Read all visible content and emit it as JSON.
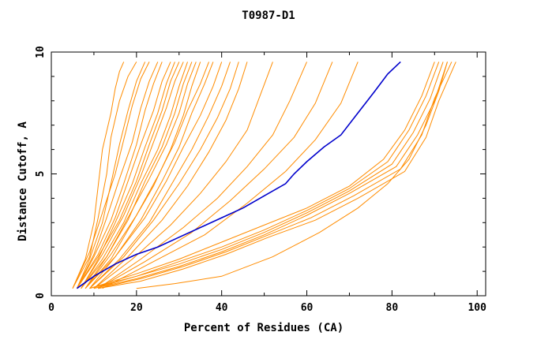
{
  "chart_data": {
    "type": "line",
    "title": "T0987-D1",
    "xlabel": "Percent of Residues (CA)",
    "ylabel": "Distance Cutoff, A",
    "xlim": [
      0,
      102
    ],
    "ylim": [
      0,
      10
    ],
    "xticks": [
      0,
      20,
      40,
      60,
      80,
      100
    ],
    "yticks": [
      0,
      5,
      10
    ],
    "grid": false,
    "colors": {
      "background": "#ffffff",
      "axis": "#000000",
      "others": "#ff8c00",
      "highlight": "#0000cc"
    },
    "highlight": {
      "x": [
        6,
        10,
        15,
        20,
        25,
        30,
        35,
        40,
        45,
        50,
        55,
        57,
        60,
        64,
        68,
        72,
        76,
        79,
        82
      ],
      "y": [
        0.3,
        0.8,
        1.3,
        1.7,
        2.0,
        2.4,
        2.8,
        3.2,
        3.6,
        4.1,
        4.6,
        5.0,
        5.5,
        6.1,
        6.6,
        7.5,
        8.4,
        9.1,
        9.6
      ]
    },
    "series": [
      {
        "x": [
          5,
          8,
          10,
          11,
          12,
          14,
          15,
          16,
          17
        ],
        "y": [
          0.3,
          1.5,
          3.0,
          4.5,
          6.0,
          7.5,
          8.5,
          9.2,
          9.6
        ]
      },
      {
        "x": [
          5,
          9,
          11,
          13,
          14,
          16,
          18,
          20
        ],
        "y": [
          0.3,
          1.6,
          3.2,
          5.0,
          6.5,
          8.0,
          9.0,
          9.6
        ]
      },
      {
        "x": [
          6,
          9,
          12,
          14,
          16,
          18,
          20,
          22
        ],
        "y": [
          0.3,
          1.5,
          3.0,
          4.6,
          6.2,
          7.6,
          8.8,
          9.6
        ]
      },
      {
        "x": [
          5,
          9,
          12,
          15,
          17,
          19,
          21,
          23
        ],
        "y": [
          0.3,
          1.8,
          3.4,
          5.0,
          6.4,
          7.8,
          8.9,
          9.6
        ]
      },
      {
        "x": [
          6,
          10,
          13,
          16,
          19,
          21,
          23,
          25
        ],
        "y": [
          0.3,
          1.7,
          3.2,
          4.8,
          6.3,
          7.7,
          8.8,
          9.6
        ]
      },
      {
        "x": [
          6,
          10,
          14,
          17,
          20,
          22,
          24,
          26
        ],
        "y": [
          0.3,
          1.6,
          3.1,
          4.6,
          6.2,
          7.6,
          8.7,
          9.6
        ]
      },
      {
        "x": [
          6,
          11,
          15,
          18,
          21,
          24,
          26,
          28
        ],
        "y": [
          0.3,
          1.7,
          3.2,
          4.7,
          6.2,
          7.6,
          8.8,
          9.6
        ]
      },
      {
        "x": [
          7,
          11,
          15,
          19,
          22,
          25,
          27,
          29
        ],
        "y": [
          0.3,
          1.5,
          3.0,
          4.6,
          6.1,
          7.5,
          8.7,
          9.6
        ]
      },
      {
        "x": [
          6,
          11,
          16,
          20,
          23,
          26,
          28,
          30
        ],
        "y": [
          0.3,
          1.6,
          3.1,
          4.7,
          6.2,
          7.6,
          8.8,
          9.6
        ]
      },
      {
        "x": [
          7,
          12,
          17,
          21,
          24,
          27,
          29,
          31
        ],
        "y": [
          0.3,
          1.7,
          3.3,
          4.9,
          6.3,
          7.7,
          8.8,
          9.6
        ]
      },
      {
        "x": [
          7,
          12,
          17,
          21,
          25,
          28,
          30,
          32
        ],
        "y": [
          0.3,
          1.5,
          3.0,
          4.6,
          6.0,
          7.4,
          8.6,
          9.6
        ]
      },
      {
        "x": [
          7,
          13,
          18,
          22,
          26,
          29,
          31,
          33
        ],
        "y": [
          0.3,
          1.6,
          3.1,
          4.7,
          6.1,
          7.5,
          8.7,
          9.6
        ]
      },
      {
        "x": [
          8,
          13,
          18,
          23,
          27,
          30,
          32,
          34
        ],
        "y": [
          0.3,
          1.6,
          3.2,
          4.8,
          6.2,
          7.5,
          8.7,
          9.6
        ]
      },
      {
        "x": [
          8,
          14,
          19,
          24,
          28,
          31,
          33,
          35
        ],
        "y": [
          0.3,
          1.5,
          3.0,
          4.5,
          6.0,
          7.4,
          8.6,
          9.6
        ]
      },
      {
        "x": [
          8,
          14,
          20,
          25,
          29,
          32,
          35,
          37
        ],
        "y": [
          0.3,
          1.7,
          3.3,
          4.9,
          6.3,
          7.6,
          8.7,
          9.6
        ]
      },
      {
        "x": [
          8,
          15,
          21,
          26,
          30,
          33,
          36,
          38
        ],
        "y": [
          0.3,
          1.6,
          3.1,
          4.7,
          6.1,
          7.5,
          8.7,
          9.6
        ]
      },
      {
        "x": [
          9,
          15,
          22,
          27,
          31,
          35,
          38,
          40
        ],
        "y": [
          0.3,
          1.6,
          3.2,
          4.7,
          6.1,
          7.4,
          8.6,
          9.6
        ]
      },
      {
        "x": [
          9,
          16,
          23,
          28,
          33,
          37,
          40,
          42
        ],
        "y": [
          0.3,
          1.5,
          3.0,
          4.5,
          6.0,
          7.4,
          8.6,
          9.6
        ]
      },
      {
        "x": [
          9,
          17,
          24,
          30,
          35,
          39,
          42,
          44
        ],
        "y": [
          0.3,
          1.6,
          3.1,
          4.6,
          6.0,
          7.3,
          8.5,
          9.6
        ]
      },
      {
        "x": [
          10,
          18,
          26,
          32,
          37,
          41,
          44,
          46
        ],
        "y": [
          0.3,
          1.6,
          3.1,
          4.5,
          5.9,
          7.2,
          8.5,
          9.6
        ]
      },
      {
        "x": [
          10,
          19,
          28,
          35,
          41,
          46,
          49,
          52
        ],
        "y": [
          0.3,
          1.5,
          2.9,
          4.2,
          5.5,
          6.8,
          8.2,
          9.6
        ]
      },
      {
        "x": [
          11,
          21,
          31,
          39,
          46,
          52,
          56,
          60
        ],
        "y": [
          0.3,
          1.5,
          2.8,
          4.0,
          5.3,
          6.6,
          8.0,
          9.6
        ]
      },
      {
        "x": [
          11,
          22,
          33,
          42,
          50,
          57,
          62,
          66
        ],
        "y": [
          0.3,
          1.4,
          2.6,
          3.9,
          5.2,
          6.5,
          7.9,
          9.6
        ]
      },
      {
        "x": [
          12,
          24,
          36,
          46,
          55,
          62,
          68,
          72
        ],
        "y": [
          0.3,
          1.4,
          2.5,
          3.8,
          5.1,
          6.4,
          7.9,
          9.6
        ]
      },
      {
        "x": [
          9,
          20,
          30,
          40,
          50,
          60,
          70,
          78,
          83,
          87,
          90
        ],
        "y": [
          0.3,
          0.9,
          1.5,
          2.2,
          2.9,
          3.6,
          4.5,
          5.6,
          6.8,
          8.2,
          9.6
        ]
      },
      {
        "x": [
          9,
          20,
          30,
          40,
          50,
          60,
          70,
          79,
          84,
          88,
          91
        ],
        "y": [
          0.3,
          0.8,
          1.4,
          2.0,
          2.7,
          3.5,
          4.4,
          5.5,
          6.8,
          8.2,
          9.6
        ]
      },
      {
        "x": [
          10,
          20,
          30,
          40,
          50,
          60,
          70,
          80,
          85,
          89,
          92
        ],
        "y": [
          0.3,
          0.8,
          1.3,
          1.9,
          2.6,
          3.4,
          4.3,
          5.4,
          6.7,
          8.1,
          9.6
        ]
      },
      {
        "x": [
          10,
          20,
          30,
          40,
          50,
          60,
          70,
          81,
          86,
          90,
          93
        ],
        "y": [
          0.3,
          0.7,
          1.2,
          1.8,
          2.5,
          3.3,
          4.2,
          5.3,
          6.6,
          8.0,
          9.6
        ]
      },
      {
        "x": [
          11,
          21,
          31,
          41,
          51,
          61,
          71,
          82,
          87,
          90,
          94
        ],
        "y": [
          0.3,
          0.7,
          1.2,
          1.8,
          2.5,
          3.2,
          4.1,
          5.2,
          6.6,
          8.1,
          9.6
        ]
      },
      {
        "x": [
          11,
          21,
          31,
          41,
          51,
          62,
          72,
          83,
          88,
          91,
          95
        ],
        "y": [
          0.3,
          0.6,
          1.1,
          1.7,
          2.4,
          3.1,
          4.0,
          5.1,
          6.5,
          8.0,
          9.6
        ]
      },
      {
        "x": [
          20,
          29,
          40,
          52,
          63,
          72,
          79,
          84,
          88,
          91,
          93
        ],
        "y": [
          0.3,
          0.5,
          0.8,
          1.6,
          2.6,
          3.6,
          4.6,
          5.6,
          7.0,
          8.4,
          9.6
        ]
      }
    ]
  }
}
